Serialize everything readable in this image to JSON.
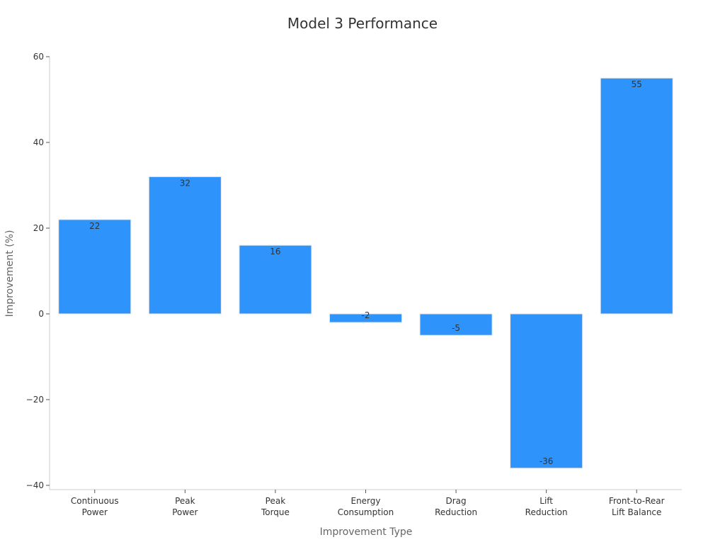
{
  "chart_data": {
    "type": "bar",
    "title": "Model 3 Performance",
    "xlabel": "Improvement Type",
    "ylabel": "Improvement (%)",
    "categories": [
      [
        "Continuous",
        "Power"
      ],
      [
        "Peak",
        "Power"
      ],
      [
        "Peak",
        "Torque"
      ],
      [
        "Energy",
        "Consumption"
      ],
      [
        "Drag",
        "Reduction"
      ],
      [
        "Lift",
        "Reduction"
      ],
      [
        "Front-to-Rear",
        "Lift Balance"
      ]
    ],
    "values": [
      22,
      32,
      16,
      -2,
      -5,
      -36,
      55
    ],
    "data_labels": [
      "22",
      "32",
      "16",
      "-2",
      "-5",
      "-36",
      "55"
    ],
    "ylim": [
      -41,
      60
    ],
    "yticks": [
      60,
      40,
      20,
      0,
      -20,
      -40
    ],
    "ytick_labels": [
      "60",
      "40",
      "20",
      "0",
      "−20",
      "−40"
    ],
    "grid": false,
    "colors": {
      "bar": "#2e93fa",
      "bar_edge": "#e6e6e6",
      "axis": "#cccccc",
      "text": "#333333",
      "axis_label": "#666666"
    }
  }
}
